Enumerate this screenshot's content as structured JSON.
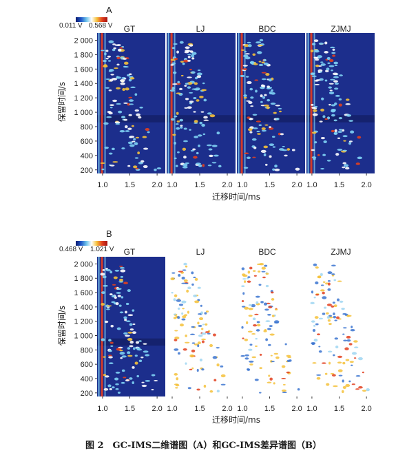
{
  "figure": {
    "caption": "图 2　GC-IMS二维谱图（A）和GC-IMS差异谱图（B）"
  },
  "chart_data": [
    {
      "type": "heatmap",
      "panel_label": "A",
      "colorbar": {
        "min_label": "0.011 V",
        "max_label": "0.568 V",
        "colors": [
          "#0b1a6e",
          "#1f56c8",
          "#6fc3ea",
          "#ffffff",
          "#f5c13a",
          "#e2401f",
          "#a31212"
        ]
      },
      "samples": [
        "GT",
        "LJ",
        "BDC",
        "ZJMJ"
      ],
      "xlabel": "迁移时间/ms",
      "ylabel": "保留时间/s",
      "x_ticks": [
        "1.0",
        "1.5",
        "2.0"
      ],
      "y_ticks": [
        "200",
        "400",
        "600",
        "800",
        "1 000",
        "1 200",
        "1 400",
        "1 600",
        "1 800",
        "2 000"
      ],
      "xlim": [
        0.9,
        2.15
      ],
      "ylim": [
        150,
        2100
      ],
      "background": "#1c2e8c"
    },
    {
      "type": "heatmap",
      "panel_label": "B",
      "colorbar": {
        "min_label": "0.468 V",
        "max_label": "1.021 V",
        "colors": [
          "#0b1a6e",
          "#1f56c8",
          "#6fc3ea",
          "#ffffff",
          "#f5c13a",
          "#e2401f",
          "#a31212"
        ]
      },
      "samples": [
        "GT",
        "LJ",
        "BDC",
        "ZJMJ"
      ],
      "reference_sample": "GT",
      "xlabel": "迁移时间/ms",
      "ylabel": "保留时间/s",
      "x_ticks": [
        "1.0",
        "1.5",
        "2.0"
      ],
      "y_ticks": [
        "200",
        "400",
        "600",
        "800",
        "1 000",
        "1 200",
        "1 400",
        "1 600",
        "1 800",
        "2 000"
      ],
      "xlim": [
        0.9,
        2.15
      ],
      "ylim": [
        150,
        2100
      ],
      "background": "#1c2e8c"
    }
  ]
}
